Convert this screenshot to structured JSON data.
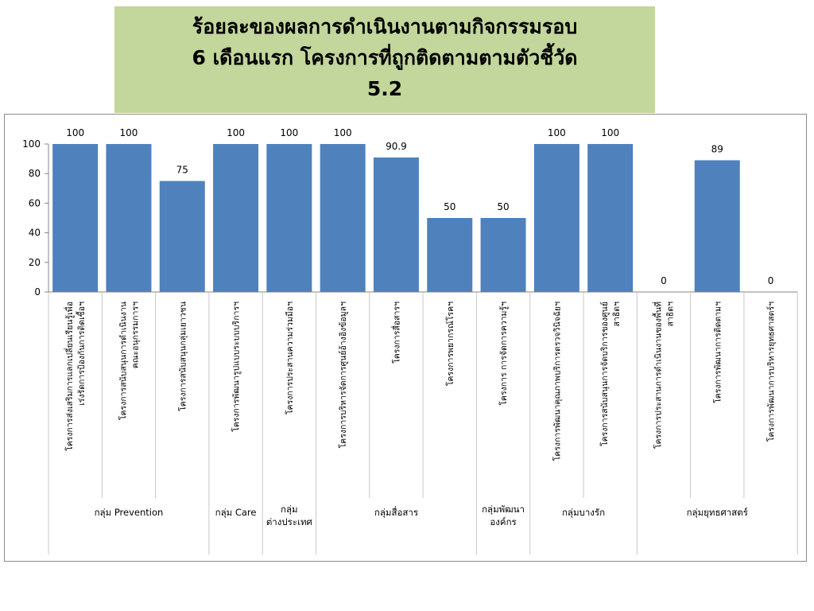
{
  "title": {
    "line1": "ร้อยละของผลการดำเนินงานตามกิจกรรมรอบ",
    "line2": "6 เดือนแรก โครงการที่ถูกติดตามตามตัวชี้วัด",
    "line3": "5.2"
  },
  "chart_data": {
    "type": "bar",
    "ylim": [
      0,
      100
    ],
    "yticks": [
      "0",
      "20",
      "40",
      "60",
      "80",
      "100"
    ],
    "bar_color": "#4f81bd",
    "grid": false,
    "legend": "none",
    "categories": [
      [
        "โครงการส่งเสริมการแลกเปลี่ยนเรียนรู้เพื่อ",
        "เร่งรัดการป้องกันการติดเชื้อฯ"
      ],
      [
        "โครงการสนับสนุนการดำเนินงาน",
        "คณะอนุกรรมการฯ"
      ],
      [
        "โครงการสนับสนุนกลุ่มเยาวชน"
      ],
      [
        "โครงการพัฒนารูปแบบระบบบริการฯ"
      ],
      [
        "โครงการประสานความร่วมมือฯ"
      ],
      [
        "โครงการบริหารจัดการศูนย์อ้างอิงข้อมูลฯ"
      ],
      [
        "โครงการสื่อสารฯ"
      ],
      [
        "โครงการพยากรณ์โรคฯ"
      ],
      [
        "โครงการ การจัดการความรู้ฯ"
      ],
      [
        "โครงการพัฒนาคุณภาพบริการตรวจวินิจฉัยฯ"
      ],
      [
        "โครงการสนับสนุนการจัดบริการของศูนย์",
        "สาธิตฯ"
      ],
      [
        "โครงการประสานการดำเนินงานของพื้นที่",
        "สาธิตฯ"
      ],
      [
        "โครงการพัฒนาการติดตามฯ"
      ],
      [
        "โครงการพัฒนาการบริหารยุทธศาสตร์ฯ"
      ]
    ],
    "values": [
      100,
      100,
      75,
      100,
      100,
      100,
      90.9,
      50,
      50,
      100,
      100,
      0,
      89,
      0
    ],
    "data_labels": [
      "100",
      "100",
      "75",
      "100",
      "100",
      "100",
      "90.9",
      "50",
      "50",
      "100",
      "100",
      "0",
      "89",
      "0"
    ],
    "groups": [
      {
        "label": [
          "กลุ่ม Prevention"
        ],
        "start": 0,
        "end": 2
      },
      {
        "label": [
          "กลุ่ม Care"
        ],
        "start": 3,
        "end": 3
      },
      {
        "label": [
          "กลุ่ม",
          "ต่างประเทศ"
        ],
        "start": 4,
        "end": 4
      },
      {
        "label": [
          "กลุ่มสื่อสาร"
        ],
        "start": 5,
        "end": 7
      },
      {
        "label": [
          "กลุ่มพัฒนา",
          "องค์กร"
        ],
        "start": 8,
        "end": 8
      },
      {
        "label": [
          "กลุ่มบางรัก"
        ],
        "start": 9,
        "end": 10
      },
      {
        "label": [
          "กลุ่มยุทธศาสตร์"
        ],
        "start": 11,
        "end": 13
      }
    ]
  }
}
